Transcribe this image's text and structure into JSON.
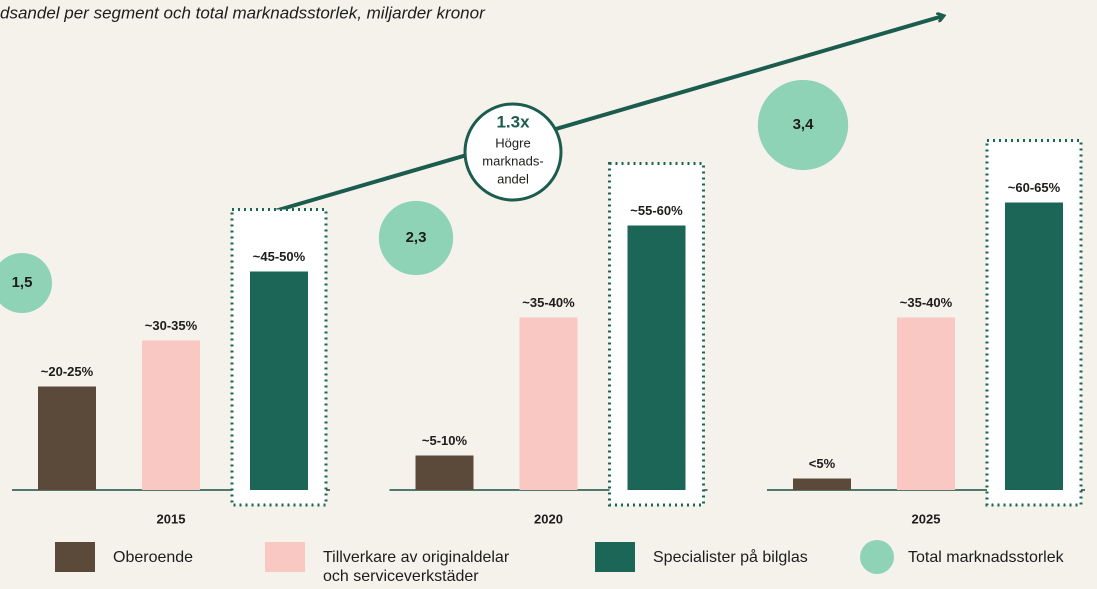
{
  "chart_data": {
    "type": "bar",
    "title": "dsandel per segment och total marknadsstorlek, miljarder kronor",
    "categories": [
      "2015",
      "2020",
      "2025"
    ],
    "series": [
      {
        "name": "Oberoende",
        "color": "#5b4a3a",
        "values": [
          22.5,
          7.5,
          2.5
        ],
        "value_labels": [
          "~20-25%",
          "~5-10%",
          "<5%"
        ]
      },
      {
        "name": "Tillverkare av originaldelar och serviceverkstäder",
        "color": "#f9c8c3",
        "values": [
          32.5,
          37.5,
          37.5
        ],
        "value_labels": [
          "~30-35%",
          "~35-40%",
          "~35-40%"
        ]
      },
      {
        "name": "Specialister på bilglas",
        "color": "#1b6657",
        "values": [
          47.5,
          57.5,
          62.5
        ],
        "value_labels": [
          "~45-50%",
          "~55-60%",
          "~60-65%"
        ]
      }
    ],
    "bubbles": {
      "name": "Total marknadsstorlek",
      "color": "#8fd3b7",
      "values": [
        1.5,
        2.3,
        3.4
      ],
      "value_labels": [
        "1,5",
        "2,3",
        "3,4"
      ]
    },
    "annotation": {
      "value": "1.3x",
      "lines": [
        "Högre",
        "marknads-",
        "andel"
      ]
    }
  }
}
